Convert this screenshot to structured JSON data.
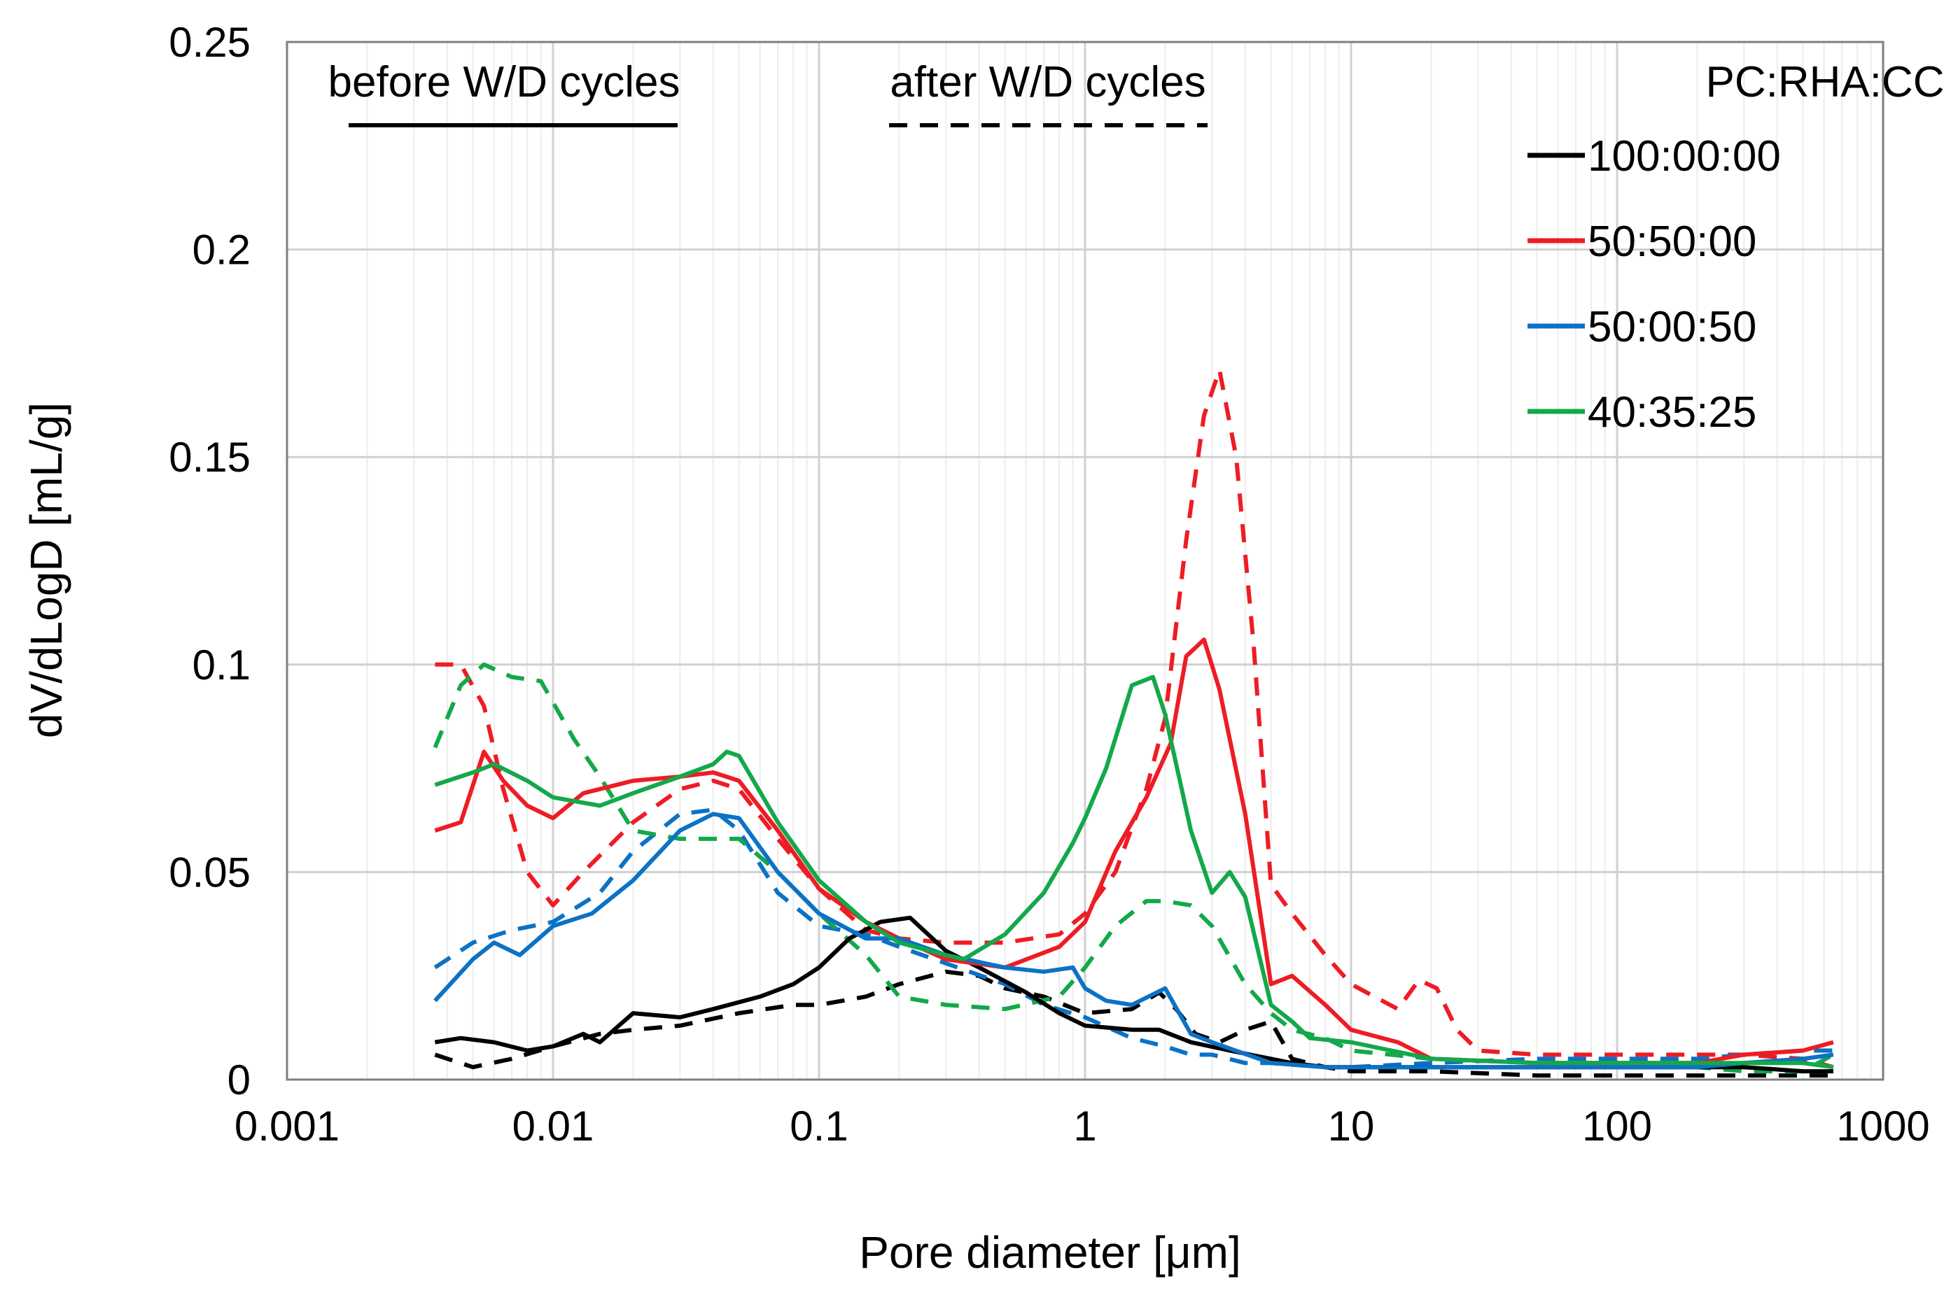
{
  "chart_data": {
    "type": "line",
    "title": "",
    "xlabel": "Pore diameter [μm]",
    "ylabel": "dV/dLogD [mL/g]",
    "xscale": "log",
    "xlim": [
      0.001,
      1000
    ],
    "ylim": [
      0,
      0.25
    ],
    "xticks": [
      "0.001",
      "0.01",
      "0.1",
      "1",
      "10",
      "100",
      "1000"
    ],
    "yticks": [
      "0",
      "0.05",
      "0.1",
      "0.15",
      "0.2",
      "0.25"
    ],
    "grid": true,
    "legend": {
      "title": "PC:RHA:CC",
      "position": "top-right",
      "entries": [
        "100:00:00",
        "50:50:00",
        "50:00:50",
        "40:35:25"
      ]
    },
    "annotations": {
      "before": "before W/D cycles",
      "after": "after W/D cycles"
    },
    "colors": {
      "100:00:00": "#000000",
      "50:50:00": "#ee1c24",
      "50:00:50": "#0b72c5",
      "40:35:25": "#13a84a"
    },
    "series": [
      {
        "name": "100:00:00",
        "condition": "before W/D cycles",
        "style": "solid",
        "x": [
          0.0036,
          0.0045,
          0.006,
          0.008,
          0.01,
          0.013,
          0.015,
          0.02,
          0.03,
          0.04,
          0.06,
          0.08,
          0.1,
          0.13,
          0.17,
          0.22,
          0.3,
          0.4,
          0.6,
          0.8,
          1,
          1.5,
          1.9,
          2.5,
          3.5,
          5,
          6,
          8,
          10,
          20,
          50,
          100,
          200,
          300,
          500,
          650
        ],
        "y": [
          0.009,
          0.01,
          0.009,
          0.007,
          0.008,
          0.011,
          0.009,
          0.016,
          0.015,
          0.017,
          0.02,
          0.023,
          0.027,
          0.034,
          0.038,
          0.039,
          0.031,
          0.027,
          0.021,
          0.016,
          0.013,
          0.012,
          0.012,
          0.009,
          0.007,
          0.005,
          0.004,
          0.003,
          0.003,
          0.003,
          0.003,
          0.003,
          0.003,
          0.003,
          0.002,
          0.002
        ]
      },
      {
        "name": "100:00:00",
        "condition": "after W/D cycles",
        "style": "dashed",
        "x": [
          0.0036,
          0.005,
          0.007,
          0.01,
          0.015,
          0.02,
          0.03,
          0.05,
          0.08,
          0.1,
          0.15,
          0.2,
          0.3,
          0.4,
          0.5,
          0.7,
          1,
          1.5,
          1.9,
          2.2,
          2.6,
          3.2,
          4,
          5,
          6,
          8,
          10,
          20,
          50,
          100,
          200,
          300,
          500,
          650
        ],
        "y": [
          0.006,
          0.003,
          0.005,
          0.008,
          0.011,
          0.012,
          0.013,
          0.016,
          0.018,
          0.018,
          0.02,
          0.023,
          0.026,
          0.025,
          0.022,
          0.02,
          0.016,
          0.017,
          0.021,
          0.017,
          0.011,
          0.009,
          0.012,
          0.014,
          0.005,
          0.003,
          0.002,
          0.002,
          0.001,
          0.001,
          0.001,
          0.001,
          0.001,
          0.001
        ]
      },
      {
        "name": "50:50:00",
        "condition": "before W/D cycles",
        "style": "solid",
        "x": [
          0.0036,
          0.0045,
          0.0055,
          0.0065,
          0.008,
          0.01,
          0.013,
          0.02,
          0.03,
          0.04,
          0.05,
          0.07,
          0.1,
          0.15,
          0.2,
          0.3,
          0.5,
          0.8,
          1,
          1.3,
          1.7,
          2.1,
          2.4,
          2.8,
          3.2,
          4,
          5,
          6,
          8,
          10,
          15,
          20,
          50,
          100,
          200,
          300,
          500,
          650
        ],
        "y": [
          0.06,
          0.062,
          0.079,
          0.072,
          0.066,
          0.063,
          0.069,
          0.072,
          0.073,
          0.074,
          0.072,
          0.06,
          0.046,
          0.038,
          0.034,
          0.029,
          0.027,
          0.032,
          0.038,
          0.055,
          0.068,
          0.081,
          0.102,
          0.106,
          0.094,
          0.064,
          0.023,
          0.025,
          0.018,
          0.012,
          0.009,
          0.005,
          0.004,
          0.004,
          0.004,
          0.006,
          0.007,
          0.009
        ]
      },
      {
        "name": "50:50:00",
        "condition": "after W/D cycles",
        "style": "dashed",
        "x": [
          0.0036,
          0.0045,
          0.0055,
          0.0065,
          0.008,
          0.01,
          0.013,
          0.02,
          0.03,
          0.04,
          0.05,
          0.07,
          0.1,
          0.15,
          0.2,
          0.3,
          0.5,
          0.8,
          1,
          1.3,
          1.7,
          2,
          2.4,
          2.8,
          3.2,
          3.7,
          4.3,
          5,
          6,
          8,
          10,
          15,
          18,
          21,
          25,
          30,
          50,
          100,
          200,
          300,
          500,
          650
        ],
        "y": [
          0.1,
          0.1,
          0.09,
          0.07,
          0.05,
          0.042,
          0.05,
          0.062,
          0.07,
          0.072,
          0.07,
          0.058,
          0.046,
          0.036,
          0.034,
          0.033,
          0.033,
          0.035,
          0.04,
          0.05,
          0.07,
          0.087,
          0.13,
          0.16,
          0.171,
          0.15,
          0.105,
          0.047,
          0.04,
          0.03,
          0.023,
          0.017,
          0.024,
          0.022,
          0.012,
          0.007,
          0.006,
          0.006,
          0.006,
          0.006,
          0.005,
          0.003
        ]
      },
      {
        "name": "50:00:50",
        "condition": "before W/D cycles",
        "style": "solid",
        "x": [
          0.0036,
          0.005,
          0.006,
          0.0075,
          0.01,
          0.014,
          0.02,
          0.03,
          0.04,
          0.05,
          0.07,
          0.1,
          0.15,
          0.2,
          0.3,
          0.5,
          0.7,
          0.9,
          1,
          1.2,
          1.5,
          2,
          2.5,
          3,
          5,
          8,
          10,
          20,
          50,
          100,
          200,
          300,
          500,
          650
        ],
        "y": [
          0.019,
          0.029,
          0.033,
          0.03,
          0.037,
          0.04,
          0.048,
          0.06,
          0.064,
          0.063,
          0.05,
          0.04,
          0.034,
          0.034,
          0.03,
          0.027,
          0.026,
          0.027,
          0.022,
          0.019,
          0.018,
          0.022,
          0.011,
          0.009,
          0.004,
          0.003,
          0.003,
          0.003,
          0.003,
          0.003,
          0.003,
          0.004,
          0.005,
          0.006
        ]
      },
      {
        "name": "50:00:50",
        "condition": "after W/D cycles",
        "style": "dashed",
        "x": [
          0.0036,
          0.005,
          0.007,
          0.01,
          0.015,
          0.02,
          0.03,
          0.04,
          0.05,
          0.07,
          0.1,
          0.15,
          0.2,
          0.3,
          0.5,
          0.7,
          1,
          1.5,
          2,
          2.5,
          3,
          4,
          5,
          8,
          10,
          20,
          50,
          100,
          200,
          300,
          500,
          650
        ],
        "y": [
          0.027,
          0.033,
          0.036,
          0.038,
          0.045,
          0.055,
          0.064,
          0.065,
          0.06,
          0.045,
          0.037,
          0.035,
          0.032,
          0.028,
          0.023,
          0.018,
          0.015,
          0.01,
          0.008,
          0.006,
          0.006,
          0.004,
          0.004,
          0.003,
          0.003,
          0.004,
          0.005,
          0.005,
          0.005,
          0.006,
          0.007,
          0.007
        ]
      },
      {
        "name": "40:35:25",
        "condition": "before W/D cycles",
        "style": "solid",
        "x": [
          0.0036,
          0.005,
          0.006,
          0.008,
          0.01,
          0.015,
          0.02,
          0.03,
          0.04,
          0.045,
          0.05,
          0.07,
          0.1,
          0.15,
          0.2,
          0.3,
          0.35,
          0.5,
          0.7,
          0.9,
          1,
          1.2,
          1.5,
          1.8,
          2,
          2.5,
          3,
          3.5,
          4,
          5,
          6,
          7,
          10,
          20,
          50,
          100,
          200,
          300,
          500,
          650
        ],
        "y": [
          0.071,
          0.074,
          0.076,
          0.072,
          0.068,
          0.066,
          0.069,
          0.073,
          0.076,
          0.079,
          0.078,
          0.062,
          0.048,
          0.038,
          0.033,
          0.03,
          0.029,
          0.035,
          0.045,
          0.057,
          0.063,
          0.075,
          0.095,
          0.097,
          0.088,
          0.06,
          0.045,
          0.05,
          0.044,
          0.018,
          0.014,
          0.01,
          0.009,
          0.005,
          0.004,
          0.004,
          0.004,
          0.004,
          0.004,
          0.003
        ]
      },
      {
        "name": "40:35:25",
        "condition": "after W/D cycles",
        "style": "dashed",
        "x": [
          0.0036,
          0.0045,
          0.0055,
          0.007,
          0.009,
          0.012,
          0.015,
          0.02,
          0.03,
          0.05,
          0.07,
          0.1,
          0.15,
          0.2,
          0.3,
          0.5,
          0.8,
          1,
          1.3,
          1.7,
          2,
          2.5,
          3,
          4,
          5,
          6,
          8,
          10,
          20,
          50,
          100,
          200,
          300,
          500,
          650
        ],
        "y": [
          0.08,
          0.095,
          0.1,
          0.097,
          0.096,
          0.082,
          0.073,
          0.06,
          0.058,
          0.058,
          0.05,
          0.04,
          0.03,
          0.02,
          0.018,
          0.017,
          0.02,
          0.027,
          0.037,
          0.043,
          0.043,
          0.042,
          0.037,
          0.023,
          0.016,
          0.012,
          0.01,
          0.007,
          0.005,
          0.004,
          0.004,
          0.003,
          0.002,
          0.002,
          0.006
        ]
      }
    ]
  }
}
